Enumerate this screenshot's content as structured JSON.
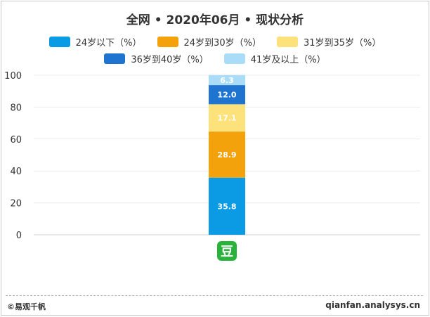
{
  "chart_data": {
    "type": "bar",
    "stacked": true,
    "title": "全网 • 2020年06月 • 现状分析",
    "categories": [
      "豆"
    ],
    "category_icon": "douban-logo-icon",
    "ylim": [
      0,
      100
    ],
    "y_ticks": [
      "0",
      "20",
      "40",
      "60",
      "80",
      "100"
    ],
    "grid": true,
    "legend_position": "top",
    "series": [
      {
        "name": "24岁以下（%）",
        "values": [
          35.8
        ],
        "label": "35.8",
        "color": "#0a9be4"
      },
      {
        "name": "24岁到30岁（%）",
        "values": [
          28.9
        ],
        "label": "28.9",
        "color": "#f4a20c"
      },
      {
        "name": "31岁到35岁（%）",
        "values": [
          17.1
        ],
        "label": "17.1",
        "color": "#fde17a"
      },
      {
        "name": "36岁到40岁（%）",
        "values": [
          12.0
        ],
        "label": "12.0",
        "color": "#1f74d0"
      },
      {
        "name": "41岁及以上（%）",
        "values": [
          6.3
        ],
        "label": "6.3",
        "color": "#a9dcf7"
      }
    ]
  },
  "footer": {
    "left": "©易观千帆",
    "right": "qianfan.analysys.cn"
  }
}
